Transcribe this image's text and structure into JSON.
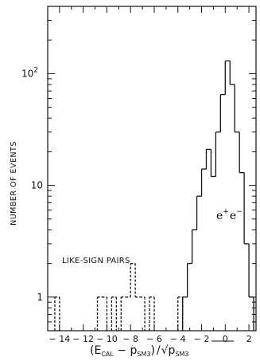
{
  "chart_data": {
    "type": "step-histogram",
    "ylabel": "NUMBER OF EVENTS",
    "y_scale": "log",
    "ylim": [
      0.5,
      400
    ],
    "xlim": [
      -15,
      2.6
    ],
    "x_ticks": [
      -14,
      -12,
      -10,
      -8,
      -6,
      -4,
      -2,
      0,
      2
    ],
    "y_ticks": [
      {
        "value": 1,
        "label": "1"
      },
      {
        "value": 10,
        "label": "10"
      },
      {
        "value": 100,
        "label": "10",
        "sup": "2"
      }
    ],
    "xlabel": {
      "open": "(E",
      "sub1": "CAL",
      "mid": " − p",
      "sub2": "SM3",
      "close": ")",
      "slash": "/",
      "sqrt": "√",
      "p": "p",
      "sub3": "SM3"
    },
    "bin_width": 0.4,
    "series": [
      {
        "name": "e+e−",
        "label_base": "e",
        "label_sup1": "+",
        "label_base2": "e",
        "label_sup2": "−",
        "style": "solid",
        "bins": [
          {
            "x0": -3.6,
            "count": 1
          },
          {
            "x0": -3.2,
            "count": 2
          },
          {
            "x0": -2.8,
            "count": 4
          },
          {
            "x0": -2.4,
            "count": 8
          },
          {
            "x0": -2.0,
            "count": 14
          },
          {
            "x0": -1.6,
            "count": 21
          },
          {
            "x0": -1.2,
            "count": 12
          },
          {
            "x0": -0.8,
            "count": 30
          },
          {
            "x0": -0.4,
            "count": 65
          },
          {
            "x0": 0.0,
            "count": 130
          },
          {
            "x0": 0.4,
            "count": 80
          },
          {
            "x0": 0.8,
            "count": 30
          },
          {
            "x0": 1.2,
            "count": 13
          },
          {
            "x0": 1.6,
            "count": 3
          },
          {
            "x0": 2.0,
            "count": 1
          }
        ]
      },
      {
        "name": "LIKE-SIGN PAIRS",
        "style": "dashed",
        "bins": [
          {
            "x0": -14.4,
            "count": 1
          },
          {
            "x0": -14.0,
            "count": 0
          },
          {
            "x0": -10.8,
            "count": 1
          },
          {
            "x0": -10.4,
            "count": 1
          },
          {
            "x0": -10.0,
            "count": 0
          },
          {
            "x0": -9.6,
            "count": 1
          },
          {
            "x0": -9.2,
            "count": 0
          },
          {
            "x0": -8.8,
            "count": 1
          },
          {
            "x0": -8.4,
            "count": 1
          },
          {
            "x0": -8.0,
            "count": 2
          },
          {
            "x0": -7.6,
            "count": 1
          },
          {
            "x0": -7.2,
            "count": 1
          },
          {
            "x0": -6.8,
            "count": 0
          },
          {
            "x0": -6.4,
            "count": 1
          },
          {
            "x0": -6.0,
            "count": 0
          },
          {
            "x0": -4.0,
            "count": 1
          },
          {
            "x0": -3.6,
            "count": 0
          }
        ]
      }
    ]
  }
}
